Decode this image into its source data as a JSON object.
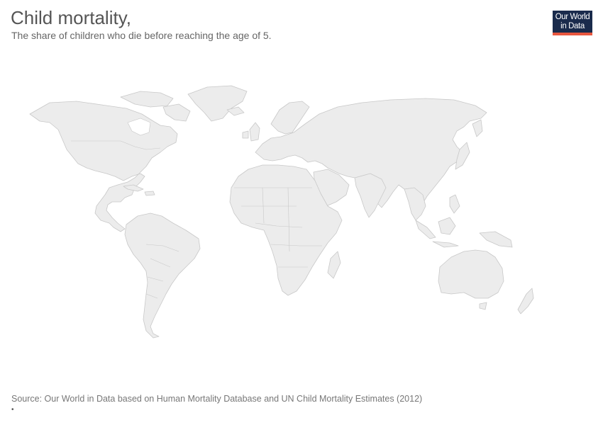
{
  "header": {
    "title": "Child mortality,",
    "subtitle": "The share of children who die before reaching the age of 5."
  },
  "logo": {
    "line1": "Our World",
    "line2": "in Data",
    "colors": {
      "background": "#1a2b4c",
      "accent": "#e8573f"
    }
  },
  "map": {
    "land_color": "#ececec",
    "border_color": "#c8c8c8",
    "data_shown": false
  },
  "footer": {
    "source": "Source: Our World in Data based on Human Mortality Database and UN Child Mortality Estimates (2012)",
    "bullet": "•"
  }
}
